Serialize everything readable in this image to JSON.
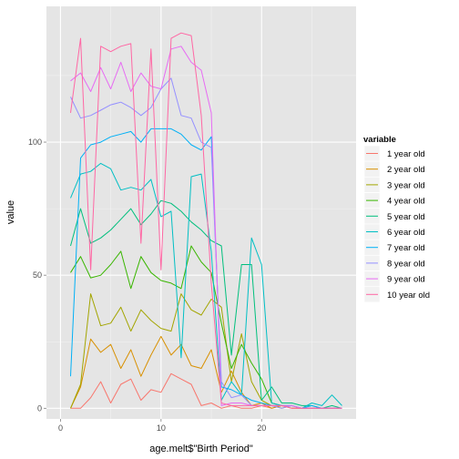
{
  "chart_data": {
    "type": "line",
    "xlabel": "age.melt$\"Birth Period\"",
    "ylabel": "value",
    "xlim": [
      -1.4,
      29.4
    ],
    "ylim": [
      -4,
      151
    ],
    "x_ticks": [
      0,
      10,
      20
    ],
    "x_tick_labels": [
      "0",
      "10",
      "20"
    ],
    "y_ticks": [
      0,
      50,
      100
    ],
    "y_tick_labels": [
      "0",
      "50",
      "100"
    ],
    "grid": true,
    "legend": {
      "title": "variable",
      "position": "right"
    },
    "series": [
      {
        "name": "1 year old",
        "color": "#F8766D",
        "x": [
          1,
          2,
          3,
          4,
          5,
          6,
          7,
          8,
          9,
          10,
          11,
          12,
          13,
          14,
          15,
          16,
          17,
          18,
          19,
          20,
          21,
          22,
          23,
          24,
          25,
          26,
          27,
          28
        ],
        "y": [
          0,
          0,
          4,
          10,
          2,
          9,
          11,
          3,
          7,
          6,
          13,
          11,
          9,
          1,
          2,
          0,
          1,
          0,
          0,
          1,
          0,
          1,
          0,
          0,
          0,
          0,
          0,
          0
        ]
      },
      {
        "name": "2 year old",
        "color": "#D89000",
        "x": [
          1,
          2,
          3,
          4,
          5,
          6,
          7,
          8,
          9,
          10,
          11,
          12,
          13,
          14,
          15,
          16,
          17,
          18,
          19,
          20,
          21,
          22,
          23,
          24,
          25,
          26,
          27,
          28
        ],
        "y": [
          0,
          8,
          26,
          21,
          24,
          15,
          22,
          12,
          20,
          27,
          20,
          24,
          16,
          15,
          22,
          6,
          14,
          6,
          1,
          2,
          0,
          1,
          0,
          0,
          0,
          0,
          0,
          0
        ]
      },
      {
        "name": "3 year old",
        "color": "#A3A500",
        "x": [
          1,
          2,
          3,
          4,
          5,
          6,
          7,
          8,
          9,
          10,
          11,
          12,
          13,
          14,
          15,
          16,
          17,
          18,
          19,
          20,
          21,
          22,
          23,
          24,
          25,
          26,
          27,
          28
        ],
        "y": [
          0,
          9,
          43,
          31,
          32,
          38,
          29,
          37,
          33,
          30,
          29,
          43,
          37,
          35,
          41,
          38,
          10,
          28,
          10,
          3,
          1,
          0,
          1,
          0,
          0,
          0,
          0,
          0
        ]
      },
      {
        "name": "4 year old",
        "color": "#39B600",
        "x": [
          1,
          2,
          3,
          4,
          5,
          6,
          7,
          8,
          9,
          10,
          11,
          12,
          13,
          14,
          15,
          16,
          17,
          18,
          19,
          20,
          21,
          22,
          23,
          24,
          25,
          26,
          27,
          28
        ],
        "y": [
          51,
          57,
          49,
          50,
          54,
          59,
          45,
          57,
          51,
          48,
          47,
          45,
          61,
          55,
          51,
          32,
          15,
          24,
          17,
          11,
          2,
          1,
          1,
          0,
          0,
          0,
          0,
          0
        ]
      },
      {
        "name": "5 year old",
        "color": "#00BF7D",
        "x": [
          1,
          2,
          3,
          4,
          5,
          6,
          7,
          8,
          9,
          10,
          11,
          12,
          13,
          14,
          15,
          16,
          17,
          18,
          19,
          20,
          21,
          22,
          23,
          24,
          25,
          26,
          27,
          28
        ],
        "y": [
          61,
          75,
          62,
          64,
          67,
          71,
          75,
          69,
          73,
          78,
          77,
          74,
          70,
          67,
          63,
          61,
          20,
          54,
          54,
          3,
          8,
          2,
          2,
          1,
          1,
          0,
          1,
          0
        ]
      },
      {
        "name": "6 year old",
        "color": "#00BFC4",
        "x": [
          1,
          2,
          3,
          4,
          5,
          6,
          7,
          8,
          9,
          10,
          11,
          12,
          13,
          14,
          15,
          16,
          17,
          18,
          19,
          20,
          21,
          22,
          23,
          24,
          25,
          26,
          27,
          28
        ],
        "y": [
          79,
          88,
          89,
          92,
          90,
          82,
          83,
          82,
          86,
          72,
          74,
          19,
          87,
          88,
          59,
          3,
          10,
          5,
          64,
          54,
          2,
          1,
          1,
          0,
          2,
          1,
          5,
          1
        ]
      },
      {
        "name": "7 year old",
        "color": "#00B0F6",
        "x": [
          1,
          2,
          3,
          4,
          5,
          6,
          7,
          8,
          9,
          10,
          11,
          12,
          13,
          14,
          15,
          16,
          17,
          18,
          19,
          20,
          21,
          22,
          23,
          24,
          25,
          26,
          27,
          28
        ],
        "y": [
          12,
          94,
          99,
          100,
          102,
          103,
          104,
          100,
          105,
          105,
          105,
          103,
          99,
          97,
          102,
          8,
          7,
          5,
          3,
          2,
          1,
          1,
          1,
          0,
          1,
          0,
          0,
          0
        ]
      },
      {
        "name": "8 year old",
        "color": "#9590FF",
        "x": [
          1,
          2,
          3,
          4,
          5,
          6,
          7,
          8,
          9,
          10,
          11,
          12,
          13,
          14,
          15,
          16,
          17,
          18,
          19,
          20,
          21,
          22,
          23,
          24,
          25,
          26,
          27,
          28
        ],
        "y": [
          117,
          109,
          110,
          112,
          114,
          115,
          113,
          110,
          113,
          120,
          124,
          110,
          109,
          100,
          98,
          10,
          4,
          5,
          1,
          1,
          1,
          0,
          1,
          0,
          0,
          0,
          0,
          0
        ]
      },
      {
        "name": "9 year old",
        "color": "#E76BF3",
        "x": [
          1,
          2,
          3,
          4,
          5,
          6,
          7,
          8,
          9,
          10,
          11,
          12,
          13,
          14,
          15,
          16,
          17,
          18,
          19,
          20,
          21,
          22,
          23,
          24,
          25,
          26,
          27,
          28
        ],
        "y": [
          123,
          126,
          119,
          128,
          120,
          130,
          119,
          126,
          121,
          120,
          135,
          136,
          130,
          127,
          111,
          1,
          2,
          2,
          1,
          1,
          1,
          1,
          1,
          0,
          0,
          0,
          0,
          0
        ]
      },
      {
        "name": "10 year old",
        "color": "#FF67A4",
        "x": [
          1,
          2,
          3,
          4,
          5,
          6,
          7,
          8,
          9,
          10,
          11,
          12,
          13,
          14,
          15,
          16,
          17,
          18,
          19,
          20,
          21,
          22,
          23,
          24,
          25,
          26,
          27,
          28
        ],
        "y": [
          111,
          139,
          52,
          136,
          134,
          136,
          137,
          62,
          135,
          52,
          139,
          141,
          140,
          110,
          47,
          2,
          1,
          1,
          1,
          1,
          1,
          1,
          0,
          0,
          0,
          0,
          0,
          0
        ]
      }
    ]
  }
}
